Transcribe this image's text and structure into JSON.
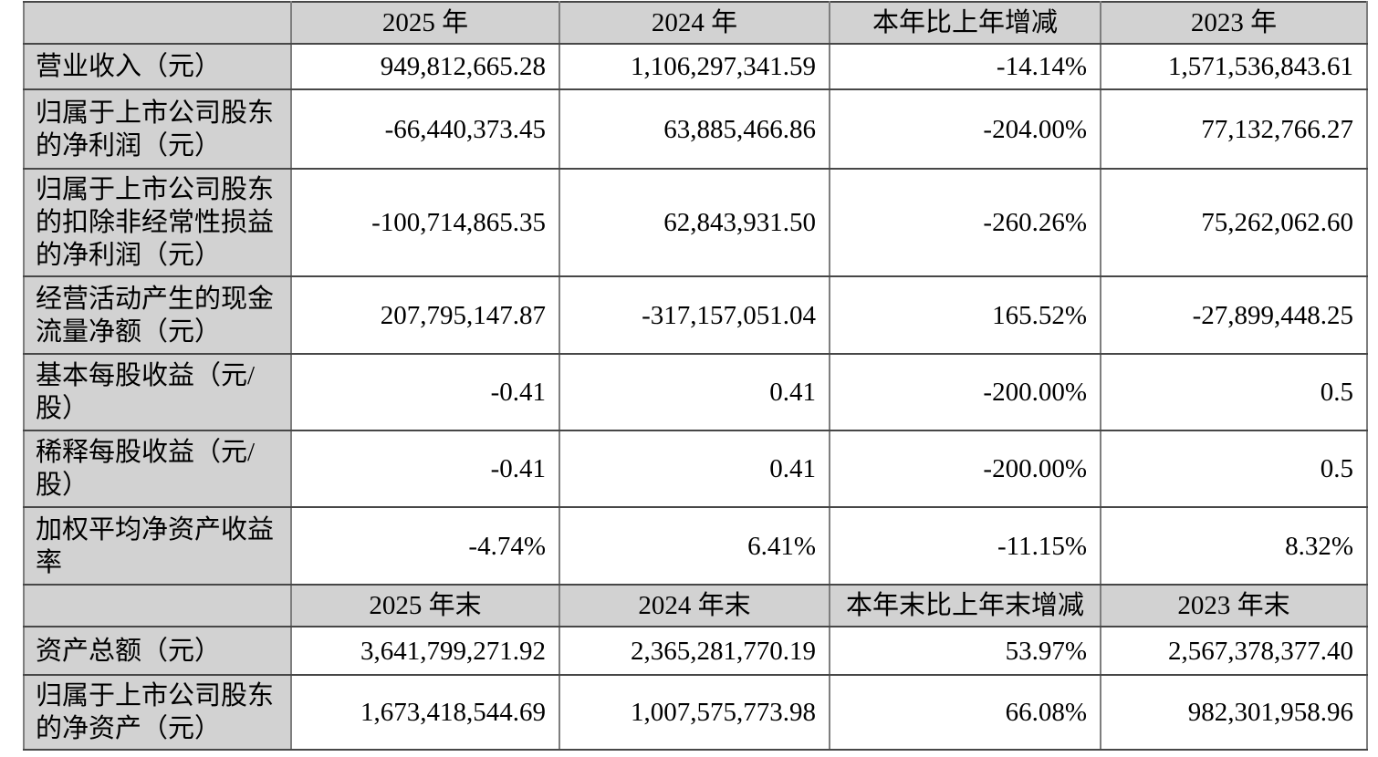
{
  "table": {
    "corner_label": "",
    "period_headers": [
      "2025 年",
      "2024 年",
      "本年比上年增减",
      "2023 年"
    ],
    "annual_rows": [
      {
        "label": "营业收入（元）",
        "y2025": "949,812,665.28",
        "y2024": "1,106,297,341.59",
        "change": "-14.14%",
        "y2023": "1,571,536,843.61"
      },
      {
        "label": "归属于上市公司股东\n的净利润（元）",
        "y2025": "-66,440,373.45",
        "y2024": "63,885,466.86",
        "change": "-204.00%",
        "y2023": "77,132,766.27"
      },
      {
        "label": "归属于上市公司股东\n的扣除非经常性损益\n的净利润（元）",
        "y2025": "-100,714,865.35",
        "y2024": "62,843,931.50",
        "change": "-260.26%",
        "y2023": "75,262,062.60"
      },
      {
        "label": "经营活动产生的现金\n流量净额（元）",
        "y2025": "207,795,147.87",
        "y2024": "-317,157,051.04",
        "change": "165.52%",
        "y2023": "-27,899,448.25"
      },
      {
        "label": "基本每股收益（元/\n股）",
        "y2025": "-0.41",
        "y2024": "0.41",
        "change": "-200.00%",
        "y2023": "0.5"
      },
      {
        "label": "稀释每股收益（元/\n股）",
        "y2025": "-0.41",
        "y2024": "0.41",
        "change": "-200.00%",
        "y2023": "0.5"
      },
      {
        "label": "加权平均净资产收益\n率",
        "y2025": "-4.74%",
        "y2024": "6.41%",
        "change": "-11.15%",
        "y2023": "8.32%"
      }
    ],
    "period_end_headers": [
      "2025 年末",
      "2024 年末",
      "本年末比上年末增减",
      "2023 年末"
    ],
    "year_end_rows": [
      {
        "label": "资产总额（元）",
        "y2025": "3,641,799,271.92",
        "y2024": "2,365,281,770.19",
        "change": "53.97%",
        "y2023": "2,567,378,377.40"
      },
      {
        "label": "归属于上市公司股东\n的净资产（元）",
        "y2025": "1,673,418,544.69",
        "y2024": "1,007,575,773.98",
        "change": "66.08%",
        "y2023": "982,301,958.96"
      }
    ]
  },
  "colors": {
    "header_bg": "#d2d2d2",
    "label_bg": "#d2d2d2",
    "cell_bg": "#ffffff",
    "border_horizontal": "#474747",
    "border_vertical": "#7e7e7e",
    "text": "#000000"
  }
}
